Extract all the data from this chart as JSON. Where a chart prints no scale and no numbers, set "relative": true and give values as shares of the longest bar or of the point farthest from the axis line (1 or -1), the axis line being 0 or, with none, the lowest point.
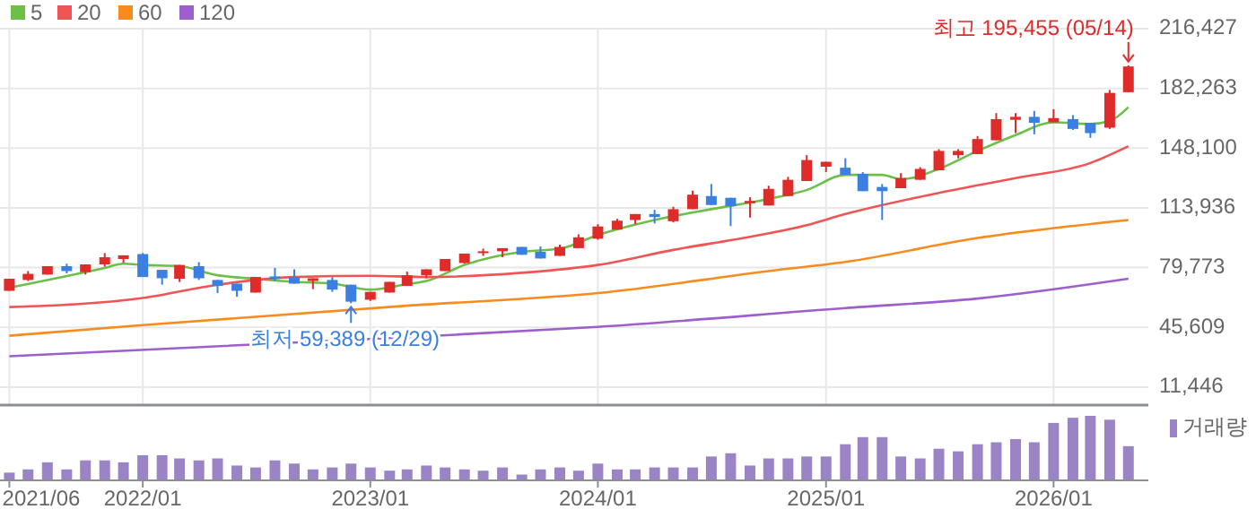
{
  "chart_data": [
    {
      "type": "candlestick",
      "xlim": [
        "2021-05-17",
        "2026-06-02"
      ],
      "xticks": [
        {
          "value": "2021-06",
          "label": null
        },
        {
          "value": "2022-01",
          "label": null
        },
        {
          "value": "2023-01",
          "label": null
        },
        {
          "value": "2024-01",
          "label": null
        },
        {
          "value": "2025-01",
          "label": null
        },
        {
          "value": "2026-01",
          "label": null
        }
      ],
      "ylim": [
        1150,
        216427
      ],
      "yticks": [
        {
          "value": 11446,
          "label": "11,446"
        },
        {
          "value": 45609,
          "label": "45,609"
        },
        {
          "value": 79773,
          "label": "79,773"
        },
        {
          "value": 113936,
          "label": "113,936"
        },
        {
          "value": 148100,
          "label": "148,100"
        },
        {
          "value": 182263,
          "label": "182,263"
        },
        {
          "value": 216427,
          "label": "216,427"
        }
      ],
      "tick_labels": "y",
      "grid": true,
      "legend": "top left",
      "x": [
        "2021-06",
        "2021-07",
        "2021-08",
        "2021-09",
        "2021-10",
        "2021-11",
        "2021-12",
        "2022-01",
        "2022-02",
        "2022-03",
        "2022-04",
        "2022-05",
        "2022-06",
        "2022-07",
        "2022-08",
        "2022-09",
        "2022-10",
        "2022-11",
        "2022-12",
        "2023-01",
        "2023-02",
        "2023-03",
        "2023-04",
        "2023-05",
        "2023-06",
        "2023-07",
        "2023-08",
        "2023-09",
        "2023-10",
        "2023-11",
        "2023-12",
        "2024-01",
        "2024-02",
        "2024-03",
        "2024-04",
        "2024-05",
        "2024-06",
        "2024-07",
        "2024-08",
        "2024-09",
        "2024-10",
        "2024-11",
        "2024-12",
        "2025-01",
        "2025-02",
        "2025-03",
        "2025-04",
        "2025-05",
        "2025-06",
        "2025-07",
        "2025-08",
        "2025-09",
        "2025-10",
        "2025-11",
        "2025-12",
        "2026-01",
        "2026-02",
        "2026-03",
        "2026-04",
        "2026-05"
      ],
      "ohlc": [
        [
          66500,
          73400,
          66500,
          73400
        ],
        [
          72700,
          77800,
          72100,
          76200
        ],
        [
          75800,
          80600,
          75800,
          80600
        ],
        [
          80600,
          82000,
          76500,
          77800
        ],
        [
          77200,
          81600,
          75800,
          81600
        ],
        [
          81600,
          88100,
          80300,
          85700
        ],
        [
          84700,
          86800,
          82400,
          86800
        ],
        [
          87500,
          88100,
          74400,
          74400
        ],
        [
          78500,
          78500,
          70000,
          73700
        ],
        [
          73400,
          81300,
          71600,
          81300
        ],
        [
          80600,
          82900,
          72700,
          73700
        ],
        [
          72700,
          72700,
          65200,
          69300
        ],
        [
          70600,
          70600,
          63100,
          66500
        ],
        [
          65500,
          74400,
          65500,
          74400
        ],
        [
          74700,
          79600,
          72100,
          73400
        ],
        [
          74400,
          78800,
          70600,
          70600
        ],
        [
          72100,
          73700,
          67500,
          73700
        ],
        [
          72700,
          74400,
          65900,
          67200
        ],
        [
          70000,
          70000,
          59389,
          60300
        ],
        [
          61400,
          65900,
          60700,
          65900
        ],
        [
          65500,
          71600,
          65500,
          71600
        ],
        [
          69300,
          77500,
          69300,
          75400
        ],
        [
          75400,
          78800,
          73700,
          78800
        ],
        [
          77800,
          84700,
          77800,
          84700
        ],
        [
          82400,
          87800,
          82000,
          87800
        ],
        [
          88100,
          90600,
          86500,
          89100
        ],
        [
          89100,
          90900,
          85700,
          90900
        ],
        [
          91600,
          91600,
          87100,
          87100
        ],
        [
          88800,
          91900,
          85000,
          85000
        ],
        [
          86500,
          92900,
          86500,
          91600
        ],
        [
          90900,
          98800,
          90900,
          97100
        ],
        [
          96300,
          104600,
          95700,
          103300
        ],
        [
          101500,
          107700,
          101500,
          106600
        ],
        [
          107000,
          110400,
          104600,
          110400
        ],
        [
          110400,
          112800,
          105000,
          108700
        ],
        [
          106300,
          114600,
          105600,
          113200
        ],
        [
          113200,
          123800,
          113200,
          121500
        ],
        [
          120700,
          127600,
          115600,
          115600
        ],
        [
          119700,
          119700,
          103500,
          114900
        ],
        [
          116600,
          120000,
          108400,
          117900
        ],
        [
          115300,
          126600,
          115300,
          124800
        ],
        [
          120700,
          131700,
          120700,
          130000
        ],
        [
          129300,
          144100,
          129300,
          141300
        ],
        [
          137500,
          140300,
          134400,
          140300
        ],
        [
          136900,
          142300,
          132800,
          132800
        ],
        [
          133400,
          134400,
          123500,
          123500
        ],
        [
          125900,
          127600,
          107000,
          123500
        ],
        [
          125200,
          133800,
          125200,
          131000
        ],
        [
          130000,
          137200,
          130000,
          136200
        ],
        [
          135400,
          147500,
          135400,
          146500
        ],
        [
          144100,
          147500,
          142300,
          146500
        ],
        [
          144700,
          155000,
          144700,
          153300
        ],
        [
          152600,
          168100,
          152600,
          164700
        ],
        [
          164300,
          168100,
          156700,
          166000
        ],
        [
          166000,
          169400,
          156000,
          162600
        ],
        [
          162900,
          170400,
          162900,
          165300
        ],
        [
          164700,
          167000,
          158500,
          159100
        ],
        [
          162600,
          162600,
          154000,
          156700
        ],
        [
          159800,
          181400,
          159100,
          179700
        ],
        [
          180100,
          195455,
          180100,
          194800
        ]
      ],
      "series": [
        {
          "name": "5",
          "type": "line",
          "color": "#6cc04a",
          "x": [
            "2021-06",
            "2021-11",
            "2021-12",
            "2022-01",
            "2022-03",
            "2022-05",
            "2022-07",
            "2022-09",
            "2022-11",
            "2023-01",
            "2023-03",
            "2023-04",
            "2023-06",
            "2023-09",
            "2023-11",
            "2024-01",
            "2024-04",
            "2024-07",
            "2024-10",
            "2024-12",
            "2025-02",
            "2025-04",
            "2025-05",
            "2025-07",
            "2025-09",
            "2025-11",
            "2026-01",
            "2026-03",
            "2026-04",
            "2026-05"
          ],
          "values": [
            68300,
            79600,
            82000,
            81300,
            80600,
            75400,
            73400,
            71600,
            70600,
            67200,
            70300,
            72100,
            81300,
            88800,
            90600,
            98400,
            107000,
            113200,
            119000,
            124100,
            132800,
            132800,
            130300,
            136200,
            146500,
            155600,
            162900,
            161900,
            163600,
            171500
          ]
        },
        {
          "name": "20",
          "type": "line",
          "color": "#f05454",
          "x": [
            "2021-06",
            "2022-01",
            "2022-05",
            "2022-09",
            "2023-01",
            "2023-04",
            "2023-09",
            "2024-01",
            "2024-05",
            "2024-09",
            "2024-12",
            "2025-02",
            "2025-07",
            "2025-11",
            "2026-03",
            "2026-05"
          ],
          "values": [
            57200,
            62400,
            70000,
            74400,
            75100,
            74400,
            76800,
            81300,
            89900,
            97400,
            104000,
            110400,
            122500,
            131000,
            139600,
            149200
          ]
        },
        {
          "name": "60",
          "type": "line",
          "color": "#f78b1e",
          "x": [
            "2021-06",
            "2022-01",
            "2023-03",
            "2024-01",
            "2024-10",
            "2025-02",
            "2025-09",
            "2026-05"
          ],
          "values": [
            40800,
            46900,
            58000,
            65200,
            77800,
            83000,
            96700,
            107000
          ]
        },
        {
          "name": "120",
          "type": "line",
          "color": "#9c5fcc",
          "x": [
            "2021-06",
            "2023-03",
            "2024-01",
            "2025-02",
            "2025-09",
            "2026-05"
          ],
          "values": [
            29100,
            40000,
            45900,
            56600,
            62100,
            73400
          ]
        }
      ],
      "annotations": [
        {
          "text": "최고 195,455 (05/14)",
          "x": "2026-05",
          "y": 195455
        },
        {
          "text": "최저 59,389 (12/29)",
          "x": "2022-12",
          "y": 59389
        }
      ]
    },
    {
      "type": "bar",
      "relative": true,
      "tick_labels": "x",
      "legend": "top right",
      "xlim": [
        "2021-05-17",
        "2026-06-02"
      ],
      "xticks": [
        {
          "value": "2021-06",
          "label": "2021/06"
        },
        {
          "value": "2022-01",
          "label": "2022/01"
        },
        {
          "value": "2023-01",
          "label": "2023/01"
        },
        {
          "value": "2024-01",
          "label": "2024/01"
        },
        {
          "value": "2025-01",
          "label": "2025/01"
        },
        {
          "value": "2026-01",
          "label": "2026/01"
        }
      ],
      "x": [
        "2021-06",
        "2021-07",
        "2021-08",
        "2021-09",
        "2021-10",
        "2021-11",
        "2021-12",
        "2022-01",
        "2022-02",
        "2022-03",
        "2022-04",
        "2022-05",
        "2022-06",
        "2022-07",
        "2022-08",
        "2022-09",
        "2022-10",
        "2022-11",
        "2022-12",
        "2023-01",
        "2023-02",
        "2023-03",
        "2023-04",
        "2023-05",
        "2023-06",
        "2023-07",
        "2023-08",
        "2023-09",
        "2023-10",
        "2023-11",
        "2023-12",
        "2024-01",
        "2024-02",
        "2024-03",
        "2024-04",
        "2024-05",
        "2024-06",
        "2024-07",
        "2024-08",
        "2024-09",
        "2024-10",
        "2024-11",
        "2024-12",
        "2025-01",
        "2025-02",
        "2025-03",
        "2025-04",
        "2025-05",
        "2025-06",
        "2025-07",
        "2025-08",
        "2025-09",
        "2025-10",
        "2025-11",
        "2025-12",
        "2026-01",
        "2026-02",
        "2026-03",
        "2026-04",
        "2026-05"
      ],
      "series": [
        {
          "name": "거래량",
          "color": "#9b84c6",
          "values": [
            0.12,
            0.17,
            0.28,
            0.17,
            0.31,
            0.31,
            0.28,
            0.39,
            0.39,
            0.34,
            0.31,
            0.34,
            0.23,
            0.2,
            0.31,
            0.26,
            0.17,
            0.2,
            0.26,
            0.2,
            0.15,
            0.17,
            0.23,
            0.2,
            0.17,
            0.15,
            0.2,
            0.09,
            0.17,
            0.2,
            0.15,
            0.26,
            0.17,
            0.17,
            0.2,
            0.2,
            0.2,
            0.37,
            0.42,
            0.23,
            0.34,
            0.34,
            0.37,
            0.37,
            0.56,
            0.67,
            0.67,
            0.37,
            0.34,
            0.49,
            0.45,
            0.56,
            0.59,
            0.64,
            0.59,
            0.89,
            0.97,
            1,
            0.94,
            0.53
          ]
        }
      ]
    }
  ]
}
